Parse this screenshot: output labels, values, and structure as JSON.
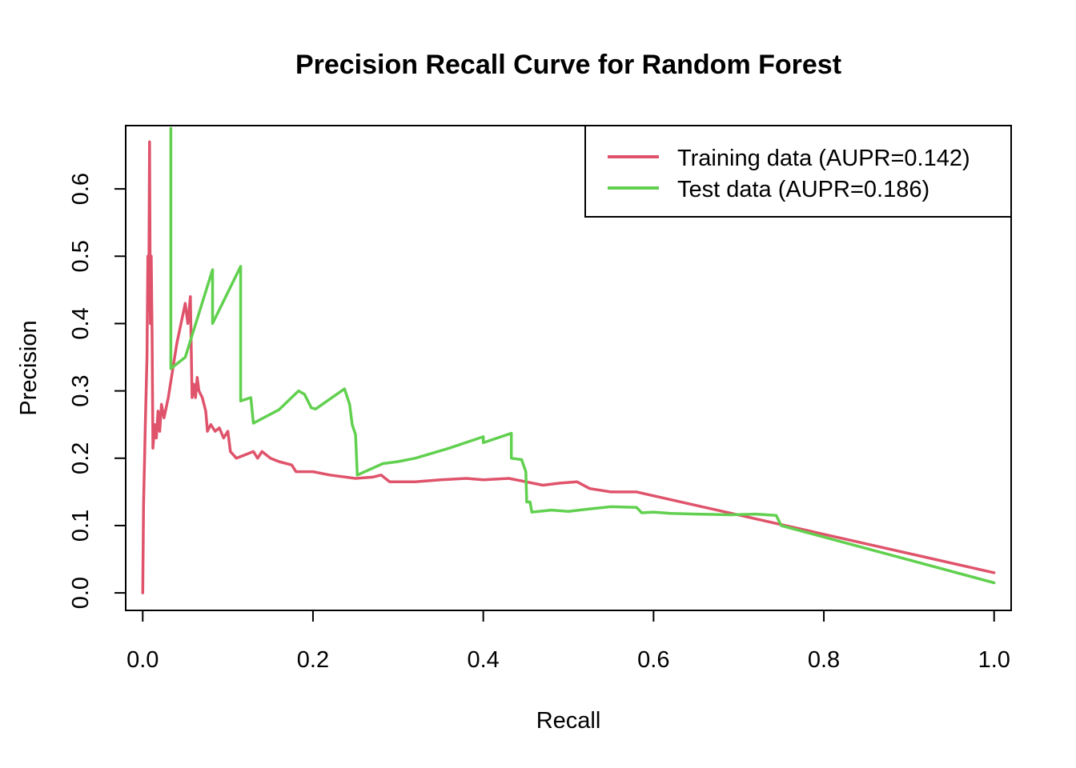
{
  "chart_data": {
    "type": "line",
    "title": "Precision Recall Curve for Random Forest",
    "xlabel": "Recall",
    "ylabel": "Precision",
    "xlim": [
      -0.02,
      1.02
    ],
    "ylim": [
      -0.026,
      0.694
    ],
    "x_ticks": [
      0.0,
      0.2,
      0.4,
      0.6,
      0.8,
      1.0
    ],
    "x_tick_labels": [
      "0.0",
      "0.2",
      "0.4",
      "0.6",
      "0.8",
      "1.0"
    ],
    "y_ticks": [
      0.0,
      0.1,
      0.2,
      0.3,
      0.4,
      0.5,
      0.6
    ],
    "y_tick_labels": [
      "0.0",
      "0.1",
      "0.2",
      "0.3",
      "0.4",
      "0.5",
      "0.6"
    ],
    "grid": false,
    "legend_position": "top-right",
    "series": [
      {
        "name": "Training data (AUPR=0.142)",
        "color": "#DF536B",
        "points": [
          [
            0.0,
            0.0
          ],
          [
            0.001,
            0.13
          ],
          [
            0.003,
            0.25
          ],
          [
            0.005,
            0.35
          ],
          [
            0.006,
            0.5
          ],
          [
            0.007,
            0.42
          ],
          [
            0.008,
            0.67
          ],
          [
            0.009,
            0.4
          ],
          [
            0.01,
            0.5
          ],
          [
            0.011,
            0.38
          ],
          [
            0.012,
            0.215
          ],
          [
            0.014,
            0.25
          ],
          [
            0.016,
            0.23
          ],
          [
            0.018,
            0.27
          ],
          [
            0.02,
            0.24
          ],
          [
            0.022,
            0.28
          ],
          [
            0.025,
            0.26
          ],
          [
            0.03,
            0.29
          ],
          [
            0.035,
            0.33
          ],
          [
            0.04,
            0.37
          ],
          [
            0.045,
            0.4
          ],
          [
            0.05,
            0.43
          ],
          [
            0.053,
            0.4
          ],
          [
            0.056,
            0.44
          ],
          [
            0.058,
            0.29
          ],
          [
            0.06,
            0.31
          ],
          [
            0.062,
            0.29
          ],
          [
            0.064,
            0.32
          ],
          [
            0.066,
            0.3
          ],
          [
            0.07,
            0.29
          ],
          [
            0.074,
            0.27
          ],
          [
            0.076,
            0.24
          ],
          [
            0.08,
            0.25
          ],
          [
            0.085,
            0.24
          ],
          [
            0.09,
            0.245
          ],
          [
            0.095,
            0.23
          ],
          [
            0.1,
            0.24
          ],
          [
            0.103,
            0.21
          ],
          [
            0.11,
            0.2
          ],
          [
            0.12,
            0.205
          ],
          [
            0.13,
            0.21
          ],
          [
            0.135,
            0.2
          ],
          [
            0.14,
            0.21
          ],
          [
            0.15,
            0.2
          ],
          [
            0.16,
            0.195
          ],
          [
            0.175,
            0.19
          ],
          [
            0.18,
            0.18
          ],
          [
            0.2,
            0.18
          ],
          [
            0.22,
            0.175
          ],
          [
            0.25,
            0.17
          ],
          [
            0.27,
            0.172
          ],
          [
            0.28,
            0.175
          ],
          [
            0.29,
            0.165
          ],
          [
            0.32,
            0.165
          ],
          [
            0.35,
            0.168
          ],
          [
            0.38,
            0.17
          ],
          [
            0.4,
            0.168
          ],
          [
            0.43,
            0.17
          ],
          [
            0.45,
            0.165
          ],
          [
            0.47,
            0.16
          ],
          [
            0.49,
            0.163
          ],
          [
            0.51,
            0.165
          ],
          [
            0.525,
            0.155
          ],
          [
            0.55,
            0.15
          ],
          [
            0.58,
            0.15
          ],
          [
            1.0,
            0.03
          ]
        ]
      },
      {
        "name": "Test data (AUPR=0.186)",
        "color": "#61D04F",
        "points": [
          [
            0.033,
            0.69
          ],
          [
            0.033,
            0.333
          ],
          [
            0.05,
            0.35
          ],
          [
            0.082,
            0.48
          ],
          [
            0.082,
            0.4
          ],
          [
            0.115,
            0.485
          ],
          [
            0.115,
            0.285
          ],
          [
            0.127,
            0.29
          ],
          [
            0.13,
            0.252
          ],
          [
            0.16,
            0.272
          ],
          [
            0.183,
            0.3
          ],
          [
            0.19,
            0.295
          ],
          [
            0.198,
            0.275
          ],
          [
            0.203,
            0.273
          ],
          [
            0.237,
            0.303
          ],
          [
            0.243,
            0.28
          ],
          [
            0.246,
            0.25
          ],
          [
            0.25,
            0.235
          ],
          [
            0.252,
            0.175
          ],
          [
            0.282,
            0.192
          ],
          [
            0.3,
            0.195
          ],
          [
            0.32,
            0.2
          ],
          [
            0.36,
            0.215
          ],
          [
            0.4,
            0.232
          ],
          [
            0.4,
            0.223
          ],
          [
            0.433,
            0.237
          ],
          [
            0.433,
            0.2
          ],
          [
            0.445,
            0.198
          ],
          [
            0.45,
            0.18
          ],
          [
            0.451,
            0.135
          ],
          [
            0.455,
            0.135
          ],
          [
            0.457,
            0.12
          ],
          [
            0.48,
            0.123
          ],
          [
            0.5,
            0.121
          ],
          [
            0.52,
            0.124
          ],
          [
            0.55,
            0.128
          ],
          [
            0.58,
            0.127
          ],
          [
            0.586,
            0.119
          ],
          [
            0.6,
            0.12
          ],
          [
            0.62,
            0.118
          ],
          [
            0.65,
            0.117
          ],
          [
            0.69,
            0.116
          ],
          [
            0.72,
            0.117
          ],
          [
            0.744,
            0.115
          ],
          [
            0.75,
            0.1
          ],
          [
            1.0,
            0.015
          ]
        ]
      }
    ]
  }
}
